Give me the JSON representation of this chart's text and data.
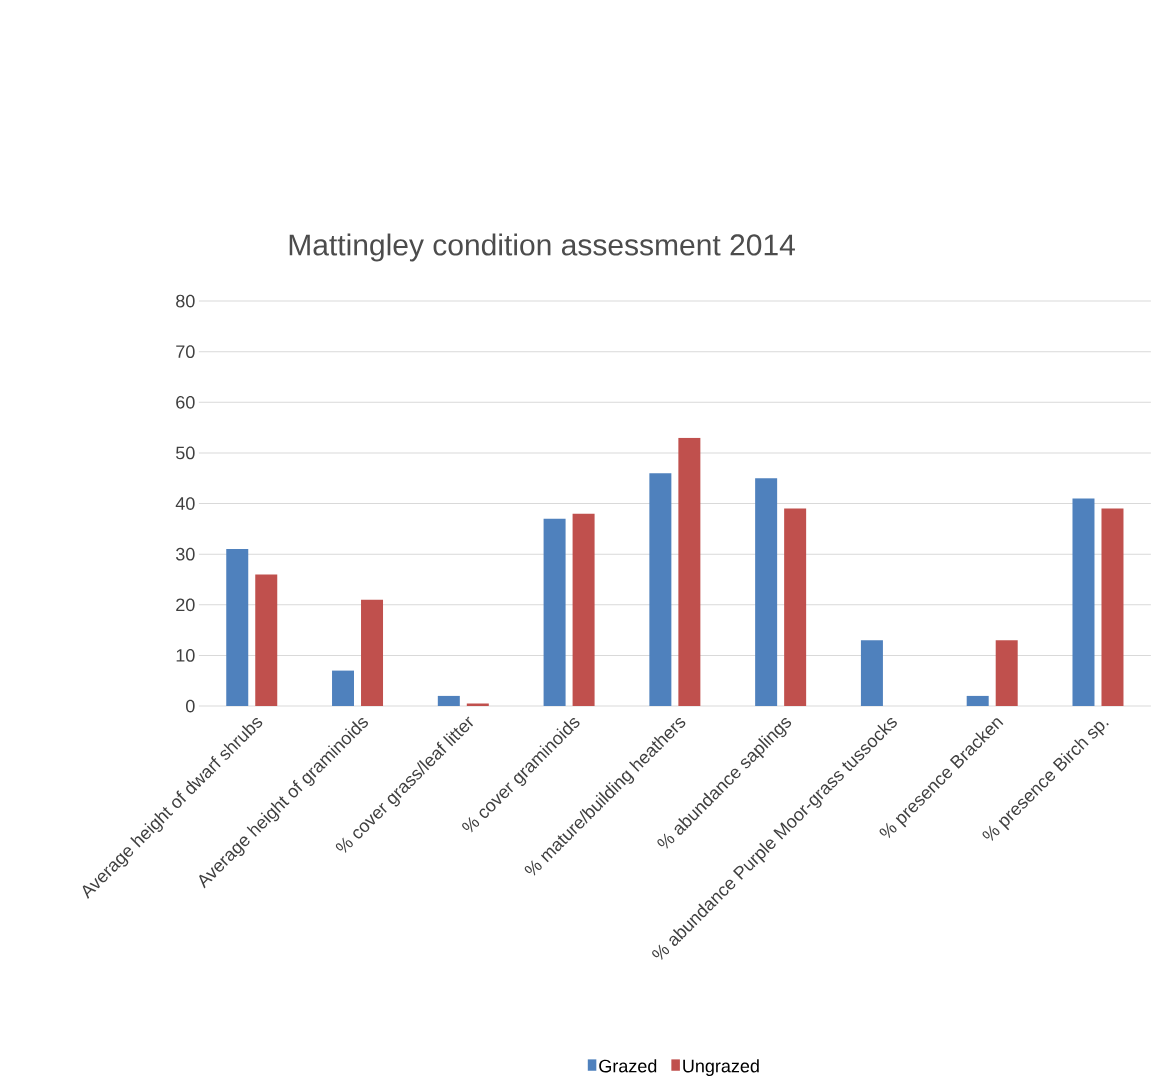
{
  "chart_data": {
    "type": "bar",
    "title": "Mattingley condition assessment 2014",
    "categories": [
      "Average height of dwarf shrubs",
      "Average height of graminoids",
      "% cover grass/leaf litter",
      "% cover graminoids",
      "% mature/building heathers",
      "% abundance saplings",
      "% abundance Purple Moor-grass tussocks",
      "% presence Bracken",
      "% presence Birch sp."
    ],
    "series": [
      {
        "name": "Grazed",
        "color": "#4f81bd",
        "values": [
          31,
          7,
          2,
          37,
          46,
          45,
          13,
          2,
          41
        ]
      },
      {
        "name": "Ungrazed",
        "color": "#c0504d",
        "values": [
          26,
          21,
          0.5,
          38,
          53,
          39,
          0,
          13,
          39
        ]
      }
    ],
    "ylim": [
      0,
      80
    ],
    "yticks": [
      0,
      10,
      20,
      30,
      40,
      50,
      60,
      70,
      80
    ],
    "grid": "y",
    "legend": "bottom"
  }
}
